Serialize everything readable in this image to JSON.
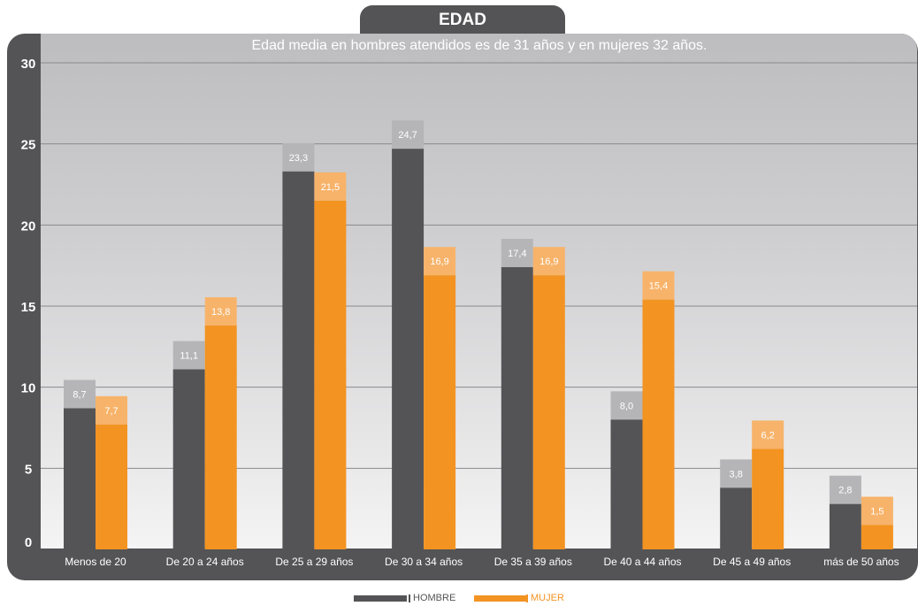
{
  "header": {
    "title": "EDAD"
  },
  "colors": {
    "panel": "#545456",
    "hombre": "#545456",
    "mujer": "#f39322",
    "hombre_label_bg": "#b5b5b7",
    "mujer_label_bg": "#f7b36a"
  },
  "chart_data": {
    "type": "bar",
    "title": "Edad media en hombres atendidos es de 31 años y en mujeres 32 años.",
    "categories": [
      "Menos de 20",
      "De 20 a 24 años",
      "De 25 a 29 años",
      "De 30 a 34 años",
      "De 35 a 39 años",
      "De 40 a 44 años",
      "De 45 a 49 años",
      "más de 50 años"
    ],
    "series": [
      {
        "name": "HOMBRE",
        "values": [
          8.7,
          11.1,
          23.3,
          24.7,
          17.4,
          8.0,
          3.8,
          2.8
        ],
        "labels": [
          "8,7",
          "11,1",
          "23,3",
          "24,7",
          "17,4",
          "8,0",
          "3,8",
          "2,8"
        ]
      },
      {
        "name": "MUJER",
        "values": [
          7.7,
          13.8,
          21.5,
          16.9,
          16.9,
          15.4,
          6.2,
          1.5
        ],
        "labels": [
          "7,7",
          "13,8",
          "21,5",
          "16,9",
          "16,9",
          "15,4",
          "6,2",
          "1,5"
        ]
      }
    ],
    "yticks": [
      0,
      5,
      10,
      15,
      20,
      25,
      30
    ],
    "ylim": [
      0,
      30
    ],
    "grid": true,
    "legend": "bottom-center"
  }
}
